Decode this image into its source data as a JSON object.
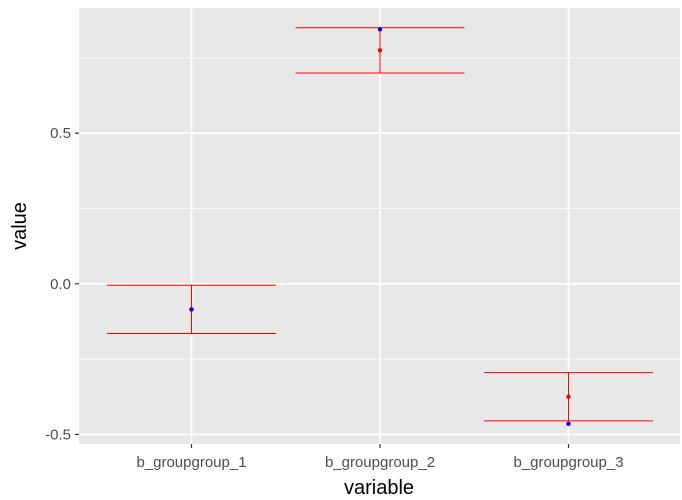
{
  "chart_data": {
    "type": "errorbar",
    "title": "",
    "xlabel": "variable",
    "ylabel": "value",
    "categories": [
      "b_groupgroup_1",
      "b_groupgroup_2",
      "b_groupgroup_3"
    ],
    "ylim": [
      -0.51,
      0.92
    ],
    "yticks": [
      -0.5,
      0.0,
      0.5
    ],
    "ytick_labels": [
      "-0.5",
      "0.0",
      "0.5"
    ],
    "grid": true,
    "series": [
      {
        "name": "interval",
        "color": "#ff0000",
        "lower": [
          -0.165,
          0.7,
          -0.455
        ],
        "upper": [
          -0.005,
          0.85,
          -0.295
        ]
      },
      {
        "name": "red point",
        "color": "#ff0000",
        "values": [
          -0.085,
          0.775,
          -0.375
        ]
      },
      {
        "name": "blue point",
        "color": "#0000ff",
        "values": [
          -0.085,
          0.845,
          -0.465
        ]
      }
    ]
  },
  "colors": {
    "panel_background": "#e8e8e8",
    "grid_major": "#ffffff",
    "tick": "#333333"
  }
}
